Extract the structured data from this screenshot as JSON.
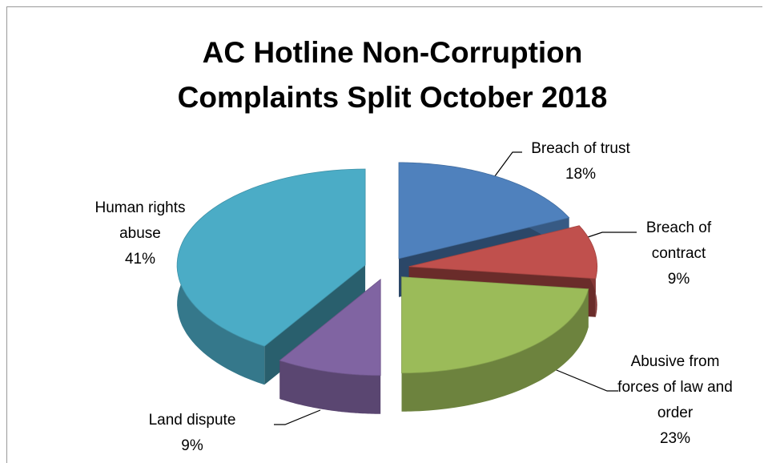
{
  "chart_data": {
    "type": "pie",
    "title": "AC Hotline Non-Corruption Complaints Split October 2018",
    "categories": [
      "Breach of trust",
      "Breach of contract",
      "Abusive from forces of law and order",
      "Land dispute",
      "Human rights abuse"
    ],
    "values": [
      18,
      9,
      23,
      9,
      41
    ],
    "value_labels": [
      "18%",
      "9%",
      "23%",
      "9%",
      "41%"
    ],
    "colors": [
      "#4f81bd",
      "#c0504d",
      "#9bbb59",
      "#8064a2",
      "#4bacc6"
    ]
  }
}
